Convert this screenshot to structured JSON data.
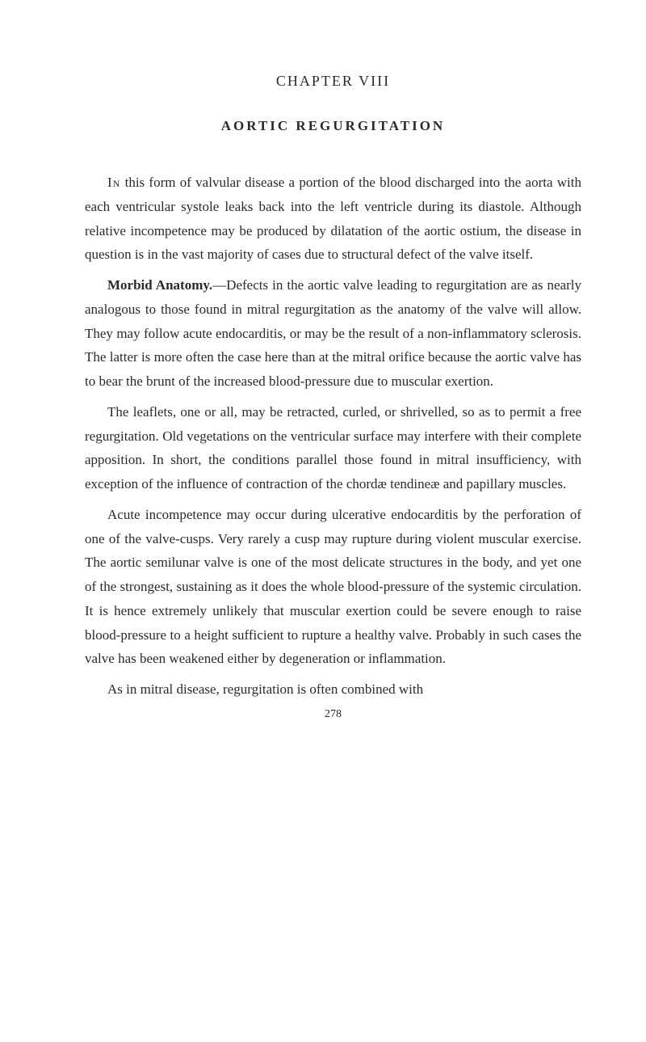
{
  "chapter_heading": "CHAPTER VIII",
  "chapter_title": "AORTIC REGURGITATION",
  "paragraphs": {
    "p1_lead": "In",
    "p1_rest": " this form of valvular disease a portion of the blood discharged into the aorta with each ventricular systole leaks back into the left ventricle during its diastole. Although relative incompetence may be produced by dilatation of the aortic ostium, the disease in question is in the vast majority of cases due to structural defect of the valve itself.",
    "p2_bold": "Morbid Anatomy.",
    "p2_rest": "—Defects in the aortic valve leading to regurgitation are as nearly analogous to those found in mitral regurgitation as the anatomy of the valve will allow. They may follow acute endocarditis, or may be the result of a non-inflammatory sclerosis. The latter is more often the case here than at the mitral orifice because the aortic valve has to bear the brunt of the increased blood-pressure due to muscular exertion.",
    "p3": "The leaflets, one or all, may be retracted, curled, or shrivelled, so as to permit a free regurgitation. Old vegetations on the ventricular surface may interfere with their complete apposition. In short, the conditions parallel those found in mitral insufficiency, with exception of the influence of contraction of the chordæ tendineæ and papillary muscles.",
    "p4": "Acute incompetence may occur during ulcerative endocarditis by the perforation of one of the valve-cusps. Very rarely a cusp may rupture during violent muscular exercise. The aortic semilunar valve is one of the most delicate structures in the body, and yet one of the strongest, sustaining as it does the whole blood-pressure of the systemic circulation. It is hence extremely unlikely that muscular exertion could be severe enough to raise blood-pressure to a height sufficient to rupture a healthy valve. Probably in such cases the valve has been weakened either by degeneration or inflammation.",
    "p5": "As in mitral disease, regurgitation is often combined with"
  },
  "page_number": "278"
}
